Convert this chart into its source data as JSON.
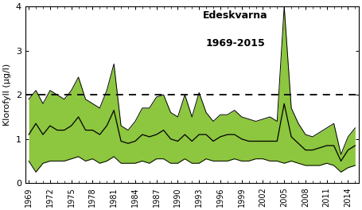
{
  "title_line1": "Edeskvarna",
  "title_line2": "1969-2015",
  "ylabel": "Klorofyll (µg/l)",
  "years": [
    1969,
    1970,
    1971,
    1972,
    1973,
    1974,
    1975,
    1976,
    1977,
    1978,
    1979,
    1980,
    1981,
    1982,
    1983,
    1984,
    1985,
    1986,
    1987,
    1988,
    1989,
    1990,
    1991,
    1992,
    1993,
    1994,
    1995,
    1996,
    1997,
    1998,
    1999,
    2000,
    2001,
    2002,
    2003,
    2004,
    2005,
    2006,
    2007,
    2008,
    2009,
    2010,
    2011,
    2012,
    2013,
    2014,
    2015
  ],
  "upper": [
    1.9,
    2.1,
    1.8,
    2.1,
    2.0,
    1.9,
    2.1,
    2.4,
    1.9,
    1.8,
    1.7,
    2.1,
    2.7,
    1.3,
    1.2,
    1.4,
    1.7,
    1.7,
    1.95,
    2.0,
    1.6,
    1.5,
    2.0,
    1.5,
    2.05,
    1.6,
    1.4,
    1.55,
    1.55,
    1.65,
    1.5,
    1.45,
    1.4,
    1.45,
    1.5,
    1.4,
    4.0,
    1.7,
    1.35,
    1.1,
    1.05,
    1.15,
    1.25,
    1.35,
    0.65,
    1.05,
    1.25
  ],
  "median": [
    1.1,
    1.35,
    1.1,
    1.3,
    1.2,
    1.2,
    1.3,
    1.5,
    1.2,
    1.2,
    1.1,
    1.3,
    1.65,
    0.95,
    0.9,
    0.95,
    1.1,
    1.05,
    1.1,
    1.2,
    1.0,
    0.95,
    1.1,
    0.95,
    1.1,
    1.1,
    0.95,
    1.05,
    1.1,
    1.1,
    1.0,
    0.95,
    0.95,
    0.95,
    0.95,
    0.95,
    1.8,
    1.05,
    0.9,
    0.75,
    0.75,
    0.8,
    0.85,
    0.85,
    0.5,
    0.75,
    0.85
  ],
  "lower": [
    0.5,
    0.25,
    0.45,
    0.5,
    0.5,
    0.5,
    0.55,
    0.6,
    0.5,
    0.55,
    0.45,
    0.5,
    0.6,
    0.45,
    0.45,
    0.45,
    0.5,
    0.45,
    0.55,
    0.55,
    0.45,
    0.45,
    0.55,
    0.45,
    0.45,
    0.55,
    0.5,
    0.5,
    0.5,
    0.55,
    0.5,
    0.5,
    0.55,
    0.55,
    0.5,
    0.5,
    0.45,
    0.5,
    0.45,
    0.4,
    0.4,
    0.4,
    0.45,
    0.4,
    0.25,
    0.35,
    0.4
  ],
  "dashed_line_y": 2.0,
  "ylim": [
    0,
    4
  ],
  "yticks": [
    0,
    1,
    2,
    3,
    4
  ],
  "xlim_start": 1969,
  "xlim_end": 2015,
  "fill_color": "#8dc63f",
  "line_color": "#000000",
  "bg_color": "#ffffff"
}
